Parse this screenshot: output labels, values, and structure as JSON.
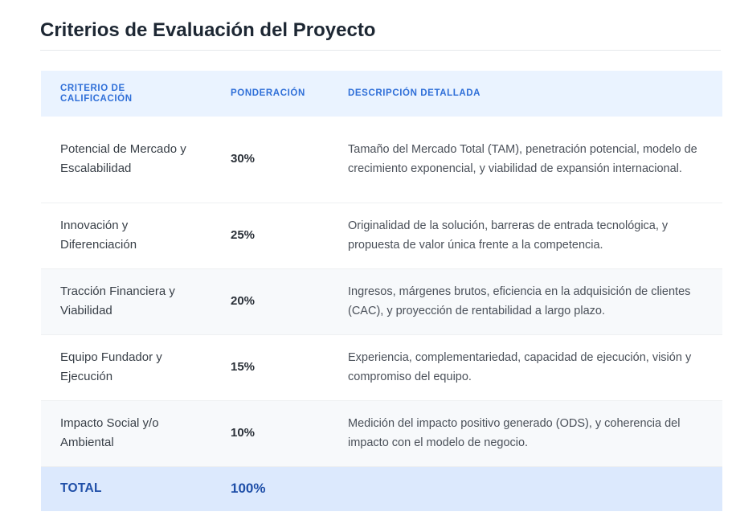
{
  "page": {
    "title": "Criterios de Evaluación del Proyecto"
  },
  "table": {
    "headers": {
      "criterion": "CRITERIO DE CALIFICACIÓN",
      "weight": "PONDERACIÓN",
      "description": "DESCRIPCIÓN DETALLADA"
    },
    "rows": [
      {
        "criterion": "Potencial de Mercado y Escalabilidad",
        "weight": "30%",
        "description": "Tamaño del Mercado Total (TAM), penetración potencial, modelo de crecimiento exponencial, y viabilidad de expansión internacional."
      },
      {
        "criterion": "Innovación y Diferenciación",
        "weight": "25%",
        "description": "Originalidad de la solución, barreras de entrada tecnológica, y propuesta de valor única frente a la competencia."
      },
      {
        "criterion": "Tracción Financiera y Viabilidad",
        "weight": "20%",
        "description": "Ingresos, márgenes brutos, eficiencia en la adquisición de clientes (CAC), y proyección de rentabilidad a largo plazo."
      },
      {
        "criterion": "Equipo Fundador y Ejecución",
        "weight": "15%",
        "description": "Experiencia, complementariedad, capacidad de ejecución, visión y compromiso del equipo."
      },
      {
        "criterion": "Impacto Social y/o Ambiental",
        "weight": "10%",
        "description": "Medición del impacto positivo generado (ODS), y coherencia del impacto con el modelo de negocio."
      }
    ],
    "total": {
      "label": "TOTAL",
      "value": "100%"
    }
  },
  "colors": {
    "header_background": "#eaf3ff",
    "header_text": "#2f6fd8",
    "total_background": "#dce9fd",
    "total_text": "#1f4fa8",
    "alt_row_background": "#f7f9fb"
  }
}
